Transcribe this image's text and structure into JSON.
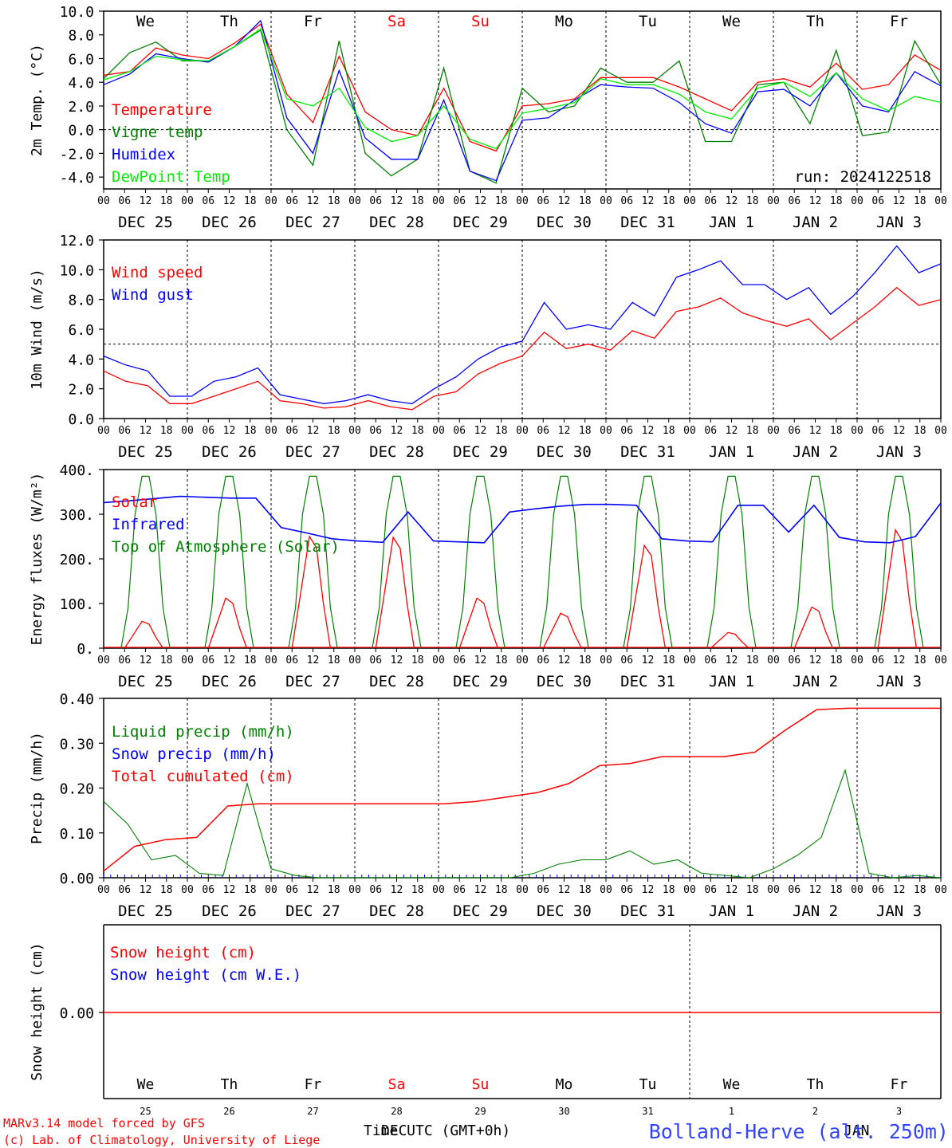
{
  "days": [
    "We",
    "Th",
    "Fr",
    "Sa",
    "Su",
    "Mo",
    "Tu",
    "We",
    "Th",
    "Fr"
  ],
  "day_colors": [
    "#000000",
    "#000000",
    "#000000",
    "#ff0000",
    "#ff0000",
    "#000000",
    "#000000",
    "#000000",
    "#000000",
    "#000000"
  ],
  "dates": [
    "DEC 25",
    "DEC 26",
    "DEC 27",
    "DEC 28",
    "DEC 29",
    "DEC 30",
    "DEC 31",
    "JAN  1",
    "JAN  2",
    "JAN  3"
  ],
  "date_nums": [
    "25",
    "26",
    "27",
    "28",
    "29",
    "30",
    "31",
    "1",
    "2",
    "3"
  ],
  "hour_ticks": [
    "00",
    "06",
    "12",
    "18"
  ],
  "last_tick": "00",
  "footer": {
    "model": "MARv3.14 model forced by GFS",
    "lab": "(c) Lab. of Climatology, University of Liege",
    "xlabel": "Time UTC (GMT+0h)",
    "xlabel_overlap": "DEC",
    "month_overlap": "JAN",
    "station": "Bolland-Herve (alt. 250m)"
  },
  "chart_data": [
    {
      "type": "line",
      "ylabel": "2m Temp. (°C)",
      "ylim": [
        -5,
        10
      ],
      "yticks": [
        "10.0",
        "8.0",
        "6.0",
        "4.0",
        "2.0",
        "0.0",
        "-2.0",
        "-4.0"
      ],
      "ytick_values": [
        10,
        8,
        6,
        4,
        2,
        0,
        -2,
        -4
      ],
      "ref_line": 0,
      "run_label": "run: 2024122518",
      "legend": [
        "Temperature",
        "Vigne temp",
        "Humidex",
        "DewPoint Temp"
      ],
      "colors": [
        "#ff0000",
        "#008000",
        "#0000ff",
        "#00ee00"
      ],
      "x_hours": [
        0,
        6,
        12,
        18,
        24,
        30,
        36,
        42,
        48,
        54,
        60,
        66,
        72,
        78,
        84,
        90,
        96,
        102,
        108,
        114,
        120,
        126,
        132,
        138,
        144,
        150,
        156,
        162,
        168,
        174,
        180,
        186,
        192,
        198,
        204,
        210,
        216,
        222,
        228,
        234,
        240
      ],
      "series": [
        {
          "name": "Temperature",
          "values": [
            4.6,
            4.9,
            6.9,
            6.3,
            6.0,
            7.3,
            8.9,
            3.0,
            0.6,
            6.2,
            1.5,
            0.0,
            -0.5,
            3.5,
            -1.0,
            -1.8,
            2.0,
            2.2,
            2.6,
            4.4,
            4.4,
            4.4,
            3.6,
            2.6,
            1.6,
            4.0,
            4.3,
            3.6,
            5.6,
            3.4,
            3.8,
            6.3,
            5.0
          ]
        },
        {
          "name": "Vigne temp",
          "values": [
            4.3,
            6.5,
            7.4,
            5.8,
            5.8,
            7.0,
            8.4,
            0.0,
            -3.0,
            7.5,
            -2.0,
            -3.9,
            -2.5,
            5.2,
            -3.5,
            -4.5,
            3.5,
            1.5,
            2.0,
            5.2,
            4.0,
            4.0,
            5.8,
            -1.0,
            -1.0,
            3.8,
            4.0,
            0.5,
            6.7,
            -0.5,
            -0.2,
            7.5,
            3.8
          ]
        },
        {
          "name": "Humidex",
          "values": [
            3.8,
            4.7,
            6.4,
            6.0,
            5.7,
            7.0,
            9.2,
            1.0,
            -2.0,
            5.0,
            -0.7,
            -2.5,
            -2.5,
            2.5,
            -3.5,
            -4.3,
            0.8,
            1.0,
            2.5,
            3.8,
            3.6,
            3.5,
            2.3,
            0.5,
            -0.3,
            3.2,
            3.4,
            2.0,
            4.8,
            2.0,
            1.5,
            4.9,
            3.7
          ]
        },
        {
          "name": "DewPoint Temp",
          "values": [
            4.2,
            4.9,
            6.2,
            5.9,
            5.8,
            7.0,
            8.5,
            2.6,
            2.0,
            3.5,
            0.2,
            -1.0,
            -0.5,
            2.0,
            -0.8,
            -1.6,
            1.4,
            1.8,
            2.3,
            4.3,
            3.8,
            3.8,
            3.0,
            1.5,
            0.9,
            3.5,
            4.0,
            2.8,
            4.8,
            2.6,
            1.6,
            2.8,
            2.3
          ]
        }
      ]
    },
    {
      "type": "line",
      "ylabel": "10m Wind (m/s)",
      "ylim": [
        0,
        12
      ],
      "yticks": [
        "12.0",
        "10.0",
        "8.0",
        "6.0",
        "4.0",
        "2.0",
        "0.0"
      ],
      "ytick_values": [
        12,
        10,
        8,
        6,
        4,
        2,
        0
      ],
      "ref_line": 5,
      "legend": [
        "Wind speed",
        "Wind gust"
      ],
      "colors": [
        "#ff0000",
        "#0000ff"
      ],
      "series": [
        {
          "name": "Wind speed",
          "values": [
            3.2,
            2.5,
            2.2,
            1.0,
            1.0,
            1.5,
            2.0,
            2.5,
            1.2,
            1.0,
            0.7,
            0.8,
            1.2,
            0.8,
            0.6,
            1.5,
            1.8,
            3.0,
            3.7,
            4.2,
            5.8,
            4.7,
            5.0,
            4.6,
            5.9,
            5.4,
            7.2,
            7.5,
            8.1,
            7.1,
            6.6,
            6.2,
            6.7,
            5.3,
            6.4,
            7.5,
            8.8,
            7.6,
            8.0
          ]
        },
        {
          "name": "Wind gust",
          "values": [
            4.2,
            3.6,
            3.2,
            1.5,
            1.5,
            2.5,
            2.8,
            3.4,
            1.6,
            1.3,
            1.0,
            1.2,
            1.6,
            1.2,
            1.0,
            2.0,
            2.8,
            4.0,
            4.8,
            5.2,
            7.8,
            6.0,
            6.3,
            6.0,
            7.8,
            6.9,
            9.5,
            10.0,
            10.6,
            9.0,
            9.0,
            8.0,
            8.8,
            7.0,
            8.2,
            9.8,
            11.6,
            9.8,
            10.4
          ]
        }
      ]
    },
    {
      "type": "line",
      "ylabel": "Energy fluxes (W/m²)",
      "ylim": [
        0,
        400
      ],
      "yticks": [
        "400.",
        "300.",
        "200.",
        "100.",
        "0."
      ],
      "ytick_values": [
        400,
        300,
        200,
        100,
        0
      ],
      "legend": [
        "Solar",
        "Infrared",
        "Top of Atmosphere (Solar)"
      ],
      "colors": [
        "#ff0000",
        "#0000ff",
        "#008000"
      ],
      "solar_peaks": [
        60,
        112,
        250,
        248,
        112,
        78,
        230,
        35,
        92,
        265
      ],
      "toa_peak": 385,
      "series": [
        {
          "name": "Infrared",
          "values": [
            326,
            330,
            335,
            340,
            338,
            336,
            336,
            270,
            258,
            245,
            240,
            237,
            305,
            240,
            238,
            236,
            305,
            312,
            318,
            322,
            322,
            320,
            245,
            240,
            238,
            320,
            320,
            260,
            320,
            248,
            238,
            236,
            250,
            325
          ]
        }
      ]
    },
    {
      "type": "line",
      "ylabel": "Precip (mm/h)",
      "ylim": [
        0,
        0.4
      ],
      "yticks": [
        "0.40",
        "0.30",
        "0.20",
        "0.10",
        "0.00"
      ],
      "ytick_values": [
        0.4,
        0.3,
        0.2,
        0.1,
        0.0
      ],
      "legend": [
        "Liquid precip (mm/h)",
        "Snow precip (mm/h)",
        "Total cumulated (cm)"
      ],
      "colors": [
        "#008000",
        "#0000ff",
        "#ff0000"
      ],
      "series": [
        {
          "name": "Total cumulated (cm)",
          "values": [
            0.015,
            0.07,
            0.085,
            0.09,
            0.16,
            0.165,
            0.165,
            0.165,
            0.165,
            0.165,
            0.165,
            0.165,
            0.17,
            0.18,
            0.19,
            0.21,
            0.25,
            0.255,
            0.27,
            0.27,
            0.27,
            0.28,
            0.33,
            0.375,
            0.378,
            0.378,
            0.378,
            0.378
          ]
        },
        {
          "name": "Liquid precip (mm/h)",
          "values": [
            0.17,
            0.12,
            0.04,
            0.05,
            0.01,
            0.005,
            0.21,
            0.02,
            0.005,
            0,
            0,
            0,
            0,
            0,
            0,
            0,
            0,
            0,
            0.01,
            0.03,
            0.04,
            0.04,
            0.06,
            0.03,
            0.04,
            0.01,
            0.005,
            0,
            0.02,
            0.05,
            0.09,
            0.24,
            0.01,
            0,
            0.005,
            0
          ]
        }
      ]
    },
    {
      "type": "line",
      "ylabel": "Snow height (cm)",
      "ytick_labels": [
        "0.00"
      ],
      "legend": [
        "Snow height (cm)",
        "Snow height (cm W.E.)"
      ],
      "colors": [
        "#ff0000",
        "#0000ff"
      ],
      "series": [
        {
          "name": "Snow height (cm)",
          "values": [
            0,
            0
          ]
        }
      ]
    }
  ]
}
